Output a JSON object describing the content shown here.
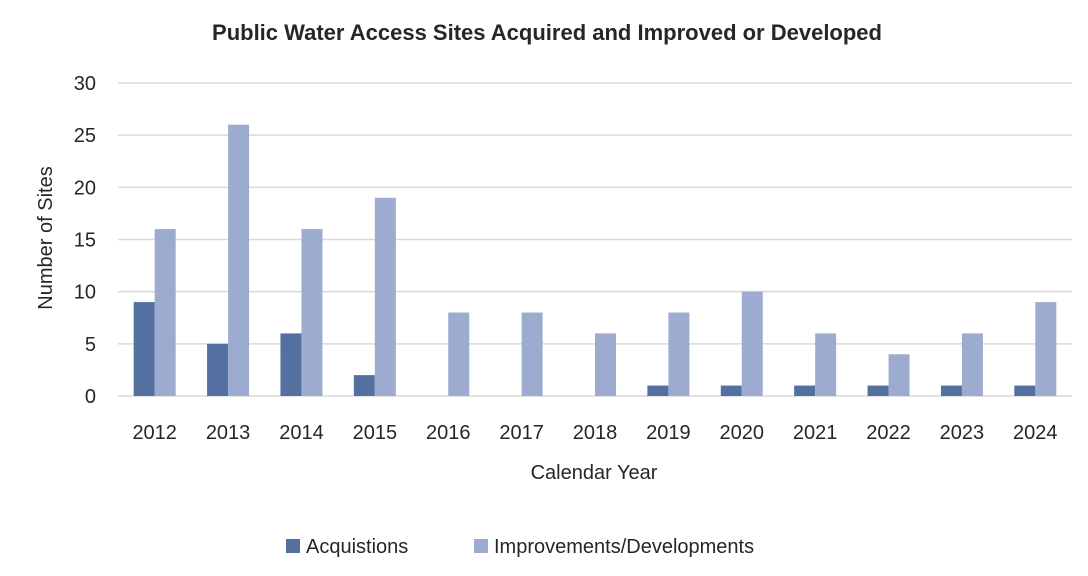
{
  "chart_data": {
    "type": "bar",
    "title": "Public Water Access Sites Acquired and Improved or Developed",
    "xlabel": "Calendar Year",
    "ylabel": "Number of Sites",
    "categories": [
      "2012",
      "2013",
      "2014",
      "2015",
      "2016",
      "2017",
      "2018",
      "2019",
      "2020",
      "2021",
      "2022",
      "2023",
      "2024"
    ],
    "series": [
      {
        "name": "Acquistions",
        "color": "#5470a0",
        "values": [
          9,
          5,
          6,
          2,
          0,
          0,
          0,
          1,
          1,
          1,
          1,
          1,
          1
        ]
      },
      {
        "name": "Improvements/Developments",
        "color": "#9dabd0",
        "values": [
          16,
          26,
          16,
          19,
          8,
          8,
          6,
          8,
          10,
          6,
          4,
          6,
          9
        ]
      }
    ],
    "ylim": [
      0,
      30
    ],
    "yticks": [
      0,
      5,
      10,
      15,
      20,
      25,
      30
    ],
    "grid": true,
    "legend": "bottom"
  }
}
